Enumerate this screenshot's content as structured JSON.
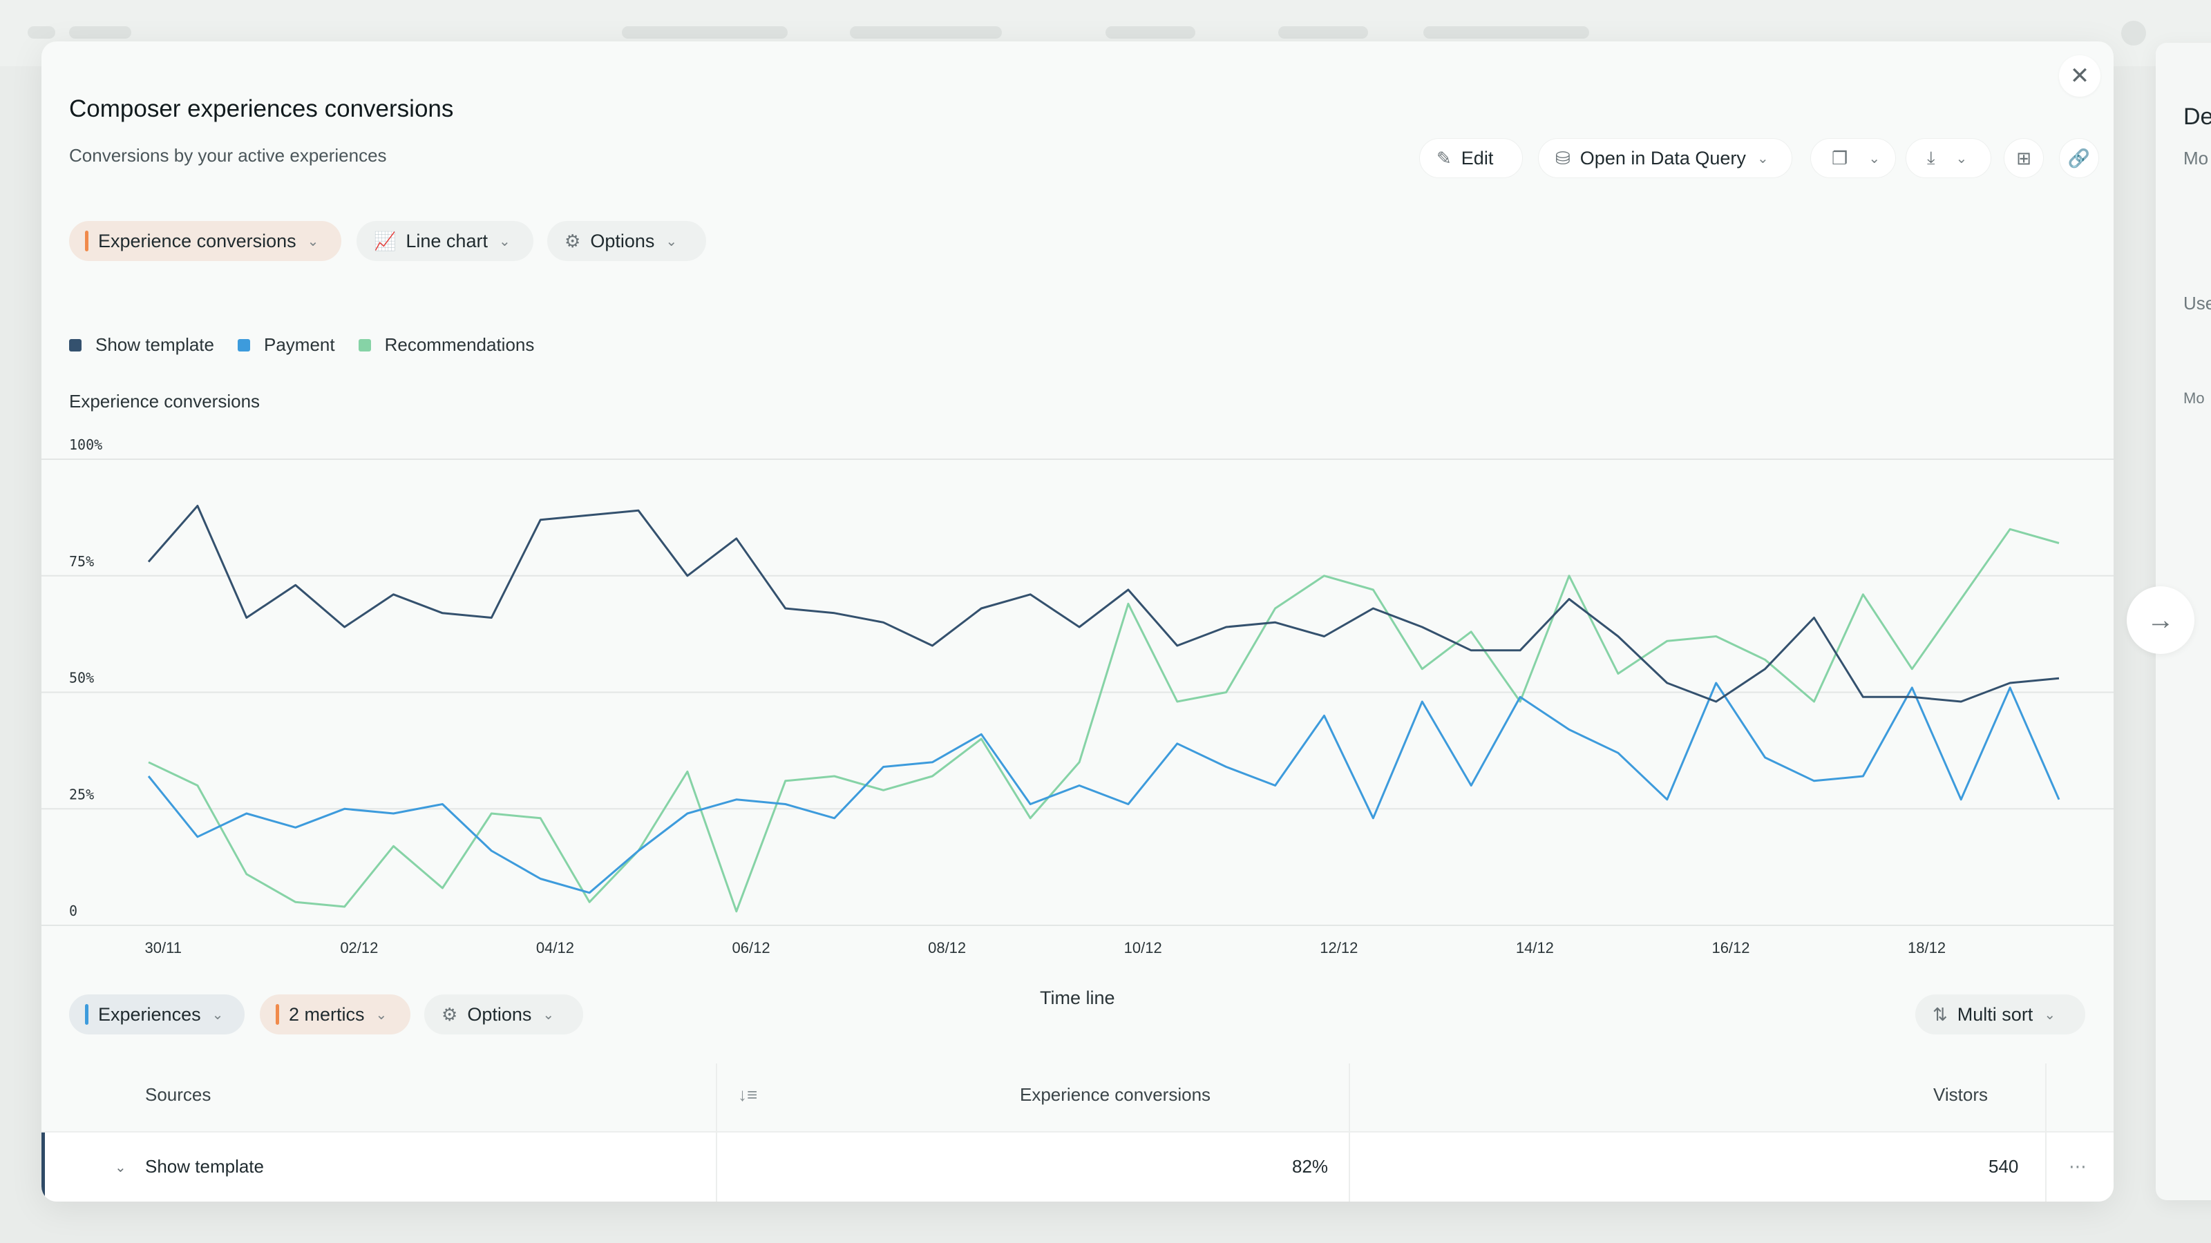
{
  "title": "Composer experiences conversions",
  "subtitle": "Conversions by your active experiences",
  "toolbar": {
    "edit_label": "Edit",
    "open_query_label": "Open in Data Query"
  },
  "filters": {
    "metric_label": "Experience conversions",
    "chart_type_label": "Line chart",
    "options_label": "Options"
  },
  "legend": [
    {
      "name": "Show template",
      "color": "#34516e"
    },
    {
      "name": "Payment",
      "color": "#3d9bdc"
    },
    {
      "name": "Recommendations",
      "color": "#86d3a6"
    }
  ],
  "chart_data": {
    "type": "line",
    "title": "Experience conversions",
    "xlabel": "Time line",
    "ylabel": "",
    "ylim": [
      0,
      100
    ],
    "y_ticks": [
      "0",
      "25%",
      "50%",
      "75%",
      "100%"
    ],
    "x_ticks": [
      "30/11",
      "02/12",
      "04/12",
      "06/12",
      "08/12",
      "10/12",
      "12/12",
      "14/12",
      "16/12",
      "18/12"
    ],
    "series": [
      {
        "name": "Show template",
        "color": "#34516e",
        "values": [
          78,
          90,
          66,
          73,
          64,
          71,
          67,
          66,
          87,
          88,
          89,
          75,
          83,
          68,
          67,
          65,
          60,
          68,
          71,
          64,
          72,
          60,
          64,
          65,
          62,
          68,
          64,
          59,
          59,
          70,
          62,
          52,
          48,
          55,
          66,
          49,
          49,
          48,
          52,
          53
        ]
      },
      {
        "name": "Payment",
        "color": "#3d9bdc",
        "values": [
          32,
          19,
          24,
          21,
          25,
          24,
          26,
          16,
          10,
          7,
          16,
          24,
          27,
          26,
          23,
          34,
          35,
          41,
          26,
          30,
          26,
          39,
          34,
          30,
          45,
          23,
          48,
          30,
          49,
          42,
          37,
          27,
          52,
          36,
          31,
          32,
          51,
          27,
          51,
          27
        ]
      },
      {
        "name": "Recommendations",
        "color": "#86d3a6",
        "values": [
          35,
          30,
          11,
          5,
          4,
          17,
          8,
          24,
          23,
          5,
          16,
          33,
          3,
          31,
          32,
          29,
          32,
          40,
          23,
          35,
          69,
          48,
          50,
          68,
          75,
          72,
          55,
          63,
          48,
          75,
          54,
          61,
          62,
          57,
          48,
          71,
          55,
          70,
          85,
          82
        ]
      }
    ]
  },
  "table_controls": {
    "experiences_label": "Experiences",
    "metrics_label": "2 mertics",
    "options_label": "Options",
    "sort_label": "Multi sort"
  },
  "table": {
    "headers": [
      "Sources",
      "Experience conversions",
      "Vistors"
    ],
    "rows": [
      {
        "source": "Show template",
        "conversions": "82%",
        "visitors": "540"
      }
    ]
  },
  "background_panel": {
    "title_fragment": "De",
    "line1": "Mo",
    "line2": "Use",
    "line3": "Mo"
  }
}
